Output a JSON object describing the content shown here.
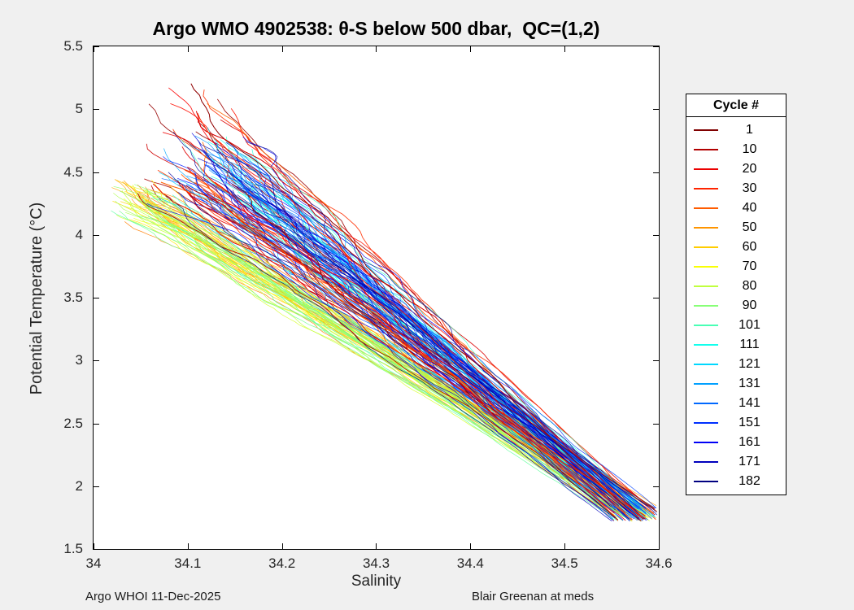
{
  "figure": {
    "background": "#f0f0f0",
    "plot_background": "#ffffff",
    "axis_color": "#262626"
  },
  "title": "Argo WMO 4902538: θ-S below 500 dbar,  QC=(1,2)",
  "axes": {
    "xlabel": "Salinity",
    "ylabel": "Potential Temperature (°C)",
    "x_ticks": [
      {
        "label": "34",
        "value": 34
      },
      {
        "label": "34.1",
        "value": 34.1
      },
      {
        "label": "34.2",
        "value": 34.2
      },
      {
        "label": "34.3",
        "value": 34.3
      },
      {
        "label": "34.4",
        "value": 34.4
      },
      {
        "label": "34.5",
        "value": 34.5
      },
      {
        "label": "34.6",
        "value": 34.6
      }
    ],
    "y_ticks": [
      {
        "label": "1.5",
        "value": 1.5
      },
      {
        "label": "2",
        "value": 2
      },
      {
        "label": "2.5",
        "value": 2.5
      },
      {
        "label": "3",
        "value": 3
      },
      {
        "label": "3.5",
        "value": 3.5
      },
      {
        "label": "4",
        "value": 4
      },
      {
        "label": "4.5",
        "value": 4.5
      },
      {
        "label": "5",
        "value": 5
      },
      {
        "label": "5.5",
        "value": 5.5
      }
    ]
  },
  "legend": {
    "title": "Cycle #",
    "entries": [
      {
        "label": "1",
        "color": "#800000"
      },
      {
        "label": "10",
        "color": "#B20000"
      },
      {
        "label": "20",
        "color": "#EB0000"
      },
      {
        "label": "30",
        "color": "#FF2400"
      },
      {
        "label": "40",
        "color": "#FF5C00"
      },
      {
        "label": "50",
        "color": "#FF9500"
      },
      {
        "label": "60",
        "color": "#FFCD00"
      },
      {
        "label": "70",
        "color": "#F9FF06"
      },
      {
        "label": "80",
        "color": "#C0FF3F"
      },
      {
        "label": "90",
        "color": "#88FF77"
      },
      {
        "label": "101",
        "color": "#4AFFB5"
      },
      {
        "label": "111",
        "color": "#12FFED"
      },
      {
        "label": "121",
        "color": "#00D8FF"
      },
      {
        "label": "131",
        "color": "#00A0FF"
      },
      {
        "label": "141",
        "color": "#0068FF"
      },
      {
        "label": "151",
        "color": "#002FFF"
      },
      {
        "label": "161",
        "color": "#0000F6"
      },
      {
        "label": "171",
        "color": "#0000BD"
      },
      {
        "label": "182",
        "color": "#000080"
      }
    ]
  },
  "footer": {
    "left": "Argo WHOI 11-Dec-2025",
    "right": "Blair Greenan at meds"
  },
  "chart_data": {
    "type": "line",
    "title": "Argo WMO 4902538: θ-S below 500 dbar,  QC=(1,2)",
    "xlabel": "Salinity",
    "ylabel": "Potential Temperature (°C)",
    "xlim": [
      34,
      34.6
    ],
    "ylim": [
      1.5,
      5.5
    ],
    "x_ticks": [
      34,
      34.1,
      34.2,
      34.3,
      34.4,
      34.5,
      34.6
    ],
    "y_ticks": [
      1.5,
      2,
      2.5,
      3,
      3.5,
      4,
      4.5,
      5,
      5.5
    ],
    "grid": false,
    "legend_title": "Cycle #",
    "legend_position": "right-outside",
    "n_profiles": 182,
    "colormap": "reversed jet (cycle 1 = dark red, cycle 182 = dark blue)",
    "description": "Theta-S curves for Argo float WMO 4902538 below 500 dbar; ~182 profile cycles converge from a spread of (salinity ~34.02-34.17, temperature ~4.15-5.2 °C) down to a common endpoint near (34.58, 1.75 °C). Early cycles (reds) form the upper/warm edge, mid cycles (orange-yellow-green) the fresh/cool lower-left edge, late cycles (cyan-blue) the dense central band.",
    "envelope_upper": [
      [
        34.05,
        4.45
      ],
      [
        34.08,
        5.2
      ],
      [
        34.1,
        4.9
      ],
      [
        34.15,
        4.6
      ],
      [
        34.2,
        4.25
      ],
      [
        34.3,
        3.8
      ],
      [
        34.4,
        3.34
      ],
      [
        34.5,
        2.83
      ],
      [
        34.6,
        1.85
      ]
    ],
    "envelope_lower": [
      [
        34.03,
        4.2
      ],
      [
        34.1,
        3.95
      ],
      [
        34.2,
        3.47
      ],
      [
        34.3,
        3.0
      ],
      [
        34.4,
        2.57
      ],
      [
        34.5,
        2.18
      ],
      [
        34.58,
        1.72
      ]
    ],
    "groups": [
      {
        "cycles": [
          1,
          42
        ],
        "palette": "dark red to red-orange",
        "start_salinity": [
          34.05,
          34.14
        ],
        "start_temp": [
          4.35,
          5.2
        ]
      },
      {
        "cycles": [
          43,
          100
        ],
        "palette": "orange to green",
        "start_salinity": [
          34.02,
          34.07
        ],
        "start_temp": [
          4.15,
          4.4
        ]
      },
      {
        "cycles": [
          101,
          182
        ],
        "palette": "teal to dark blue",
        "start_salinity": [
          34.07,
          34.17
        ],
        "start_temp": [
          4.25,
          4.82
        ]
      }
    ],
    "end_point": {
      "salinity": [
        34.55,
        34.6
      ],
      "temp": [
        1.72,
        1.85
      ]
    }
  }
}
